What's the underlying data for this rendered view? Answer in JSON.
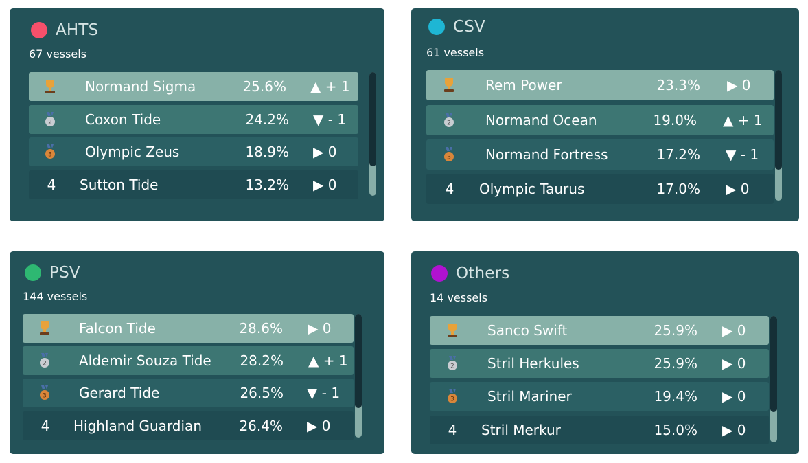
{
  "cards": [
    {
      "title": "AHTS",
      "dot_color": "#f6506b",
      "count": "67 vessels",
      "rows": [
        {
          "rank": "1",
          "medal": "trophy-icon",
          "name": "Normand Sigma",
          "pct": "25.6%",
          "trend": "▲ + 1"
        },
        {
          "rank": "2",
          "medal": "silver-medal-icon",
          "name": "Coxon Tide",
          "pct": "24.2%",
          "trend": "▼ - 1"
        },
        {
          "rank": "3",
          "medal": "bronze-medal-icon",
          "name": "Olympic Zeus",
          "pct": "18.9%",
          "trend": "▶ 0"
        },
        {
          "rank": "4",
          "medal": "",
          "name": "Sutton Tide",
          "pct": "13.2%",
          "trend": "▶ 0"
        }
      ]
    },
    {
      "title": "CSV",
      "dot_color": "#1eb6d4",
      "count": "61 vessels",
      "rows": [
        {
          "rank": "1",
          "medal": "trophy-icon",
          "name": "Rem Power",
          "pct": "23.3%",
          "trend": "▶ 0"
        },
        {
          "rank": "2",
          "medal": "silver-medal-icon",
          "name": "Normand Ocean",
          "pct": "19.0%",
          "trend": "▲ + 1"
        },
        {
          "rank": "3",
          "medal": "bronze-medal-icon",
          "name": "Normand Fortress",
          "pct": "17.2%",
          "trend": "▼ - 1"
        },
        {
          "rank": "4",
          "medal": "",
          "name": "Olympic Taurus",
          "pct": "17.0%",
          "trend": "▶ 0"
        }
      ]
    },
    {
      "title": "PSV",
      "dot_color": "#2eb872",
      "count": "144 vessels",
      "rows": [
        {
          "rank": "1",
          "medal": "trophy-icon",
          "name": "Falcon Tide",
          "pct": "28.6%",
          "trend": "▶ 0"
        },
        {
          "rank": "2",
          "medal": "silver-medal-icon",
          "name": "Aldemir Souza Tide",
          "pct": "28.2%",
          "trend": "▲ + 1"
        },
        {
          "rank": "3",
          "medal": "bronze-medal-icon",
          "name": "Gerard Tide",
          "pct": "26.5%",
          "trend": "▼ - 1"
        },
        {
          "rank": "4",
          "medal": "",
          "name": "Highland Guardian",
          "pct": "26.4%",
          "trend": "▶ 0"
        }
      ]
    },
    {
      "title": "Others",
      "dot_color": "#b012d0",
      "count": "14 vessels",
      "rows": [
        {
          "rank": "1",
          "medal": "trophy-icon",
          "name": "Sanco Swift",
          "pct": "25.9%",
          "trend": "▶ 0"
        },
        {
          "rank": "2",
          "medal": "silver-medal-icon",
          "name": "Stril Herkules",
          "pct": "25.9%",
          "trend": "▶ 0"
        },
        {
          "rank": "3",
          "medal": "bronze-medal-icon",
          "name": "Stril Mariner",
          "pct": "19.4%",
          "trend": "▶ 0"
        },
        {
          "rank": "4",
          "medal": "",
          "name": "Stril Merkur",
          "pct": "15.0%",
          "trend": "▶ 0"
        }
      ]
    }
  ]
}
